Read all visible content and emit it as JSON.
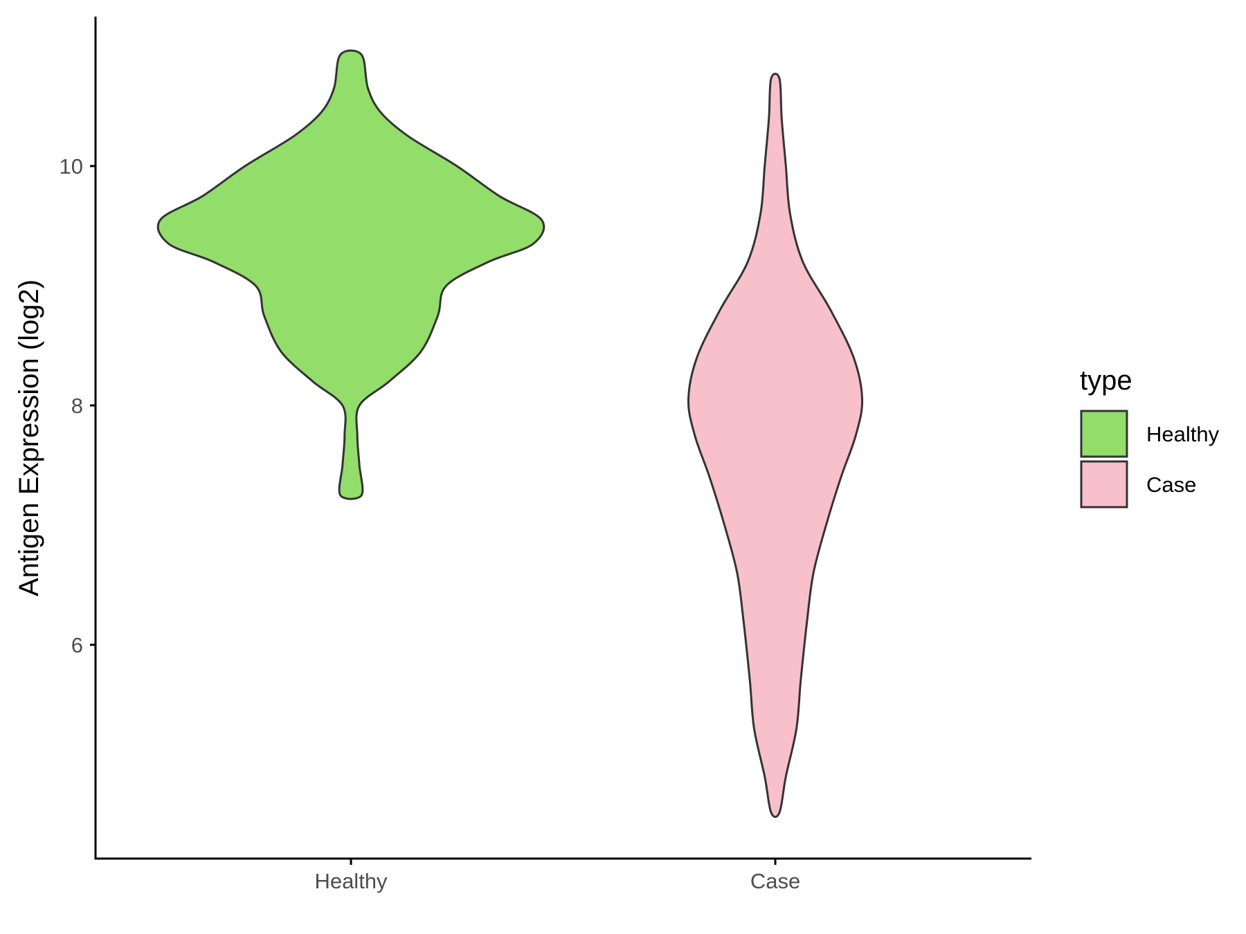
{
  "chart_data": {
    "type": "violin",
    "title": "",
    "xlabel": "",
    "ylabel": "Antigen Expression (log2)",
    "categories": [
      "Healthy",
      "Case"
    ],
    "y_ticks": [
      6,
      8,
      10
    ],
    "y_tick_labels": [
      "6",
      "8",
      "10"
    ],
    "ylim": [
      4.25,
      11.3
    ],
    "grid": false,
    "legend": {
      "title": "type",
      "position": "right",
      "entries": [
        {
          "label": "Healthy",
          "color": "#93DD6A"
        },
        {
          "label": "Case",
          "color": "#F7C0CB"
        }
      ]
    },
    "series": [
      {
        "category": "Healthy",
        "color": "#93DD6A",
        "y_min": 7.25,
        "y_max": 10.93,
        "density_profile": [
          {
            "y": 7.25,
            "half_width": 0.05
          },
          {
            "y": 7.5,
            "half_width": 0.04
          },
          {
            "y": 7.75,
            "half_width": 0.03
          },
          {
            "y": 8.0,
            "half_width": 0.04
          },
          {
            "y": 8.2,
            "half_width": 0.18
          },
          {
            "y": 8.45,
            "half_width": 0.33
          },
          {
            "y": 8.75,
            "half_width": 0.41
          },
          {
            "y": 9.0,
            "half_width": 0.45
          },
          {
            "y": 9.2,
            "half_width": 0.65
          },
          {
            "y": 9.35,
            "half_width": 0.86
          },
          {
            "y": 9.55,
            "half_width": 0.9
          },
          {
            "y": 9.75,
            "half_width": 0.7
          },
          {
            "y": 10.0,
            "half_width": 0.5
          },
          {
            "y": 10.25,
            "half_width": 0.27
          },
          {
            "y": 10.45,
            "half_width": 0.14
          },
          {
            "y": 10.65,
            "half_width": 0.08
          },
          {
            "y": 10.93,
            "half_width": 0.05
          }
        ]
      },
      {
        "category": "Case",
        "color": "#F7C0CB",
        "y_min": 4.6,
        "y_max": 10.73,
        "density_profile": [
          {
            "y": 4.6,
            "half_width": 0.02
          },
          {
            "y": 4.9,
            "half_width": 0.05
          },
          {
            "y": 5.3,
            "half_width": 0.1
          },
          {
            "y": 5.7,
            "half_width": 0.12
          },
          {
            "y": 6.2,
            "half_width": 0.15
          },
          {
            "y": 6.6,
            "half_width": 0.18
          },
          {
            "y": 7.0,
            "half_width": 0.24
          },
          {
            "y": 7.4,
            "half_width": 0.31
          },
          {
            "y": 7.75,
            "half_width": 0.38
          },
          {
            "y": 8.05,
            "half_width": 0.41
          },
          {
            "y": 8.4,
            "half_width": 0.37
          },
          {
            "y": 8.8,
            "half_width": 0.26
          },
          {
            "y": 9.2,
            "half_width": 0.13
          },
          {
            "y": 9.6,
            "half_width": 0.07
          },
          {
            "y": 10.0,
            "half_width": 0.05
          },
          {
            "y": 10.4,
            "half_width": 0.03
          },
          {
            "y": 10.73,
            "half_width": 0.02
          }
        ]
      }
    ]
  }
}
